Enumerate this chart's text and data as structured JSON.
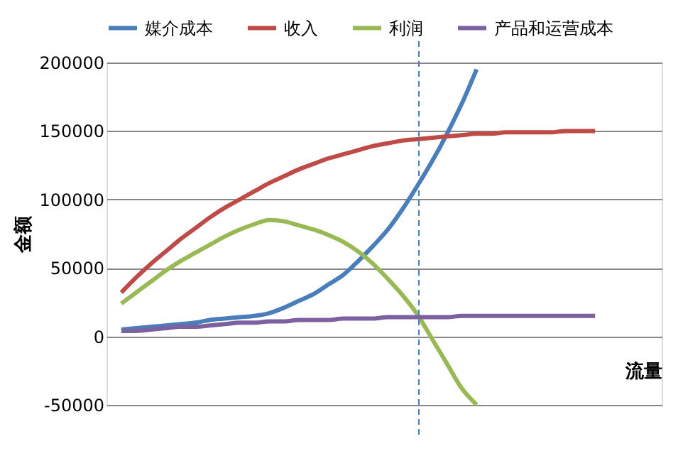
{
  "chart_data": {
    "type": "line",
    "categories": [
      null,
      null,
      null,
      null,
      null,
      null,
      null,
      null,
      null,
      null,
      null,
      null,
      null,
      null,
      null,
      null,
      null,
      null,
      null,
      null,
      null,
      null,
      null,
      null,
      null,
      null,
      null,
      null,
      null,
      null,
      null,
      null,
      null
    ],
    "series": [
      {
        "name": "媒介成本",
        "color": "#4a7ebb",
        "values": [
          5000,
          6000,
          7000,
          8000,
          9000,
          10000,
          12000,
          13000,
          14000,
          15000,
          17000,
          21000,
          26000,
          31000,
          38000,
          45000,
          55000,
          66000,
          78000,
          93000,
          110000,
          128000,
          148000,
          170000,
          195000,
          null,
          null,
          null,
          null,
          null,
          null,
          null,
          null
        ]
      },
      {
        "name": "收入",
        "color": "#be4b48",
        "values": [
          32000,
          43000,
          53000,
          62000,
          71000,
          79000,
          87000,
          94000,
          100000,
          106000,
          112000,
          117000,
          122000,
          126000,
          130000,
          133000,
          136000,
          139000,
          141000,
          143000,
          144000,
          145000,
          146000,
          147000,
          148000,
          148000,
          149000,
          149000,
          149000,
          149000,
          150000,
          150000,
          150000
        ]
      },
      {
        "name": "利润",
        "color": "#98b954",
        "values": [
          24000,
          32000,
          40000,
          48000,
          55000,
          61000,
          67000,
          73000,
          78000,
          82000,
          85000,
          84000,
          81000,
          78000,
          74000,
          69000,
          62000,
          53000,
          42000,
          30000,
          16000,
          -2000,
          -20000,
          -38000,
          -50000,
          null,
          null,
          null,
          null,
          null,
          null,
          null,
          null
        ]
      },
      {
        "name": "产品和运营成本",
        "color": "#7d60a0",
        "values": [
          4000,
          4000,
          5000,
          6000,
          7000,
          7000,
          8000,
          9000,
          10000,
          10000,
          11000,
          11000,
          12000,
          12000,
          12000,
          13000,
          13000,
          13000,
          14000,
          14000,
          14000,
          14000,
          14000,
          15000,
          15000,
          15000,
          15000,
          15000,
          15000,
          15000,
          15000,
          15000,
          15000
        ]
      }
    ],
    "ylabel": "金额",
    "xlabel": "流量",
    "ylim": [
      -50000,
      200000
    ],
    "yticks": [
      -50000,
      0,
      50000,
      100000,
      150000,
      200000
    ],
    "grid": "y",
    "legend": "top",
    "tick_labels": "y"
  }
}
